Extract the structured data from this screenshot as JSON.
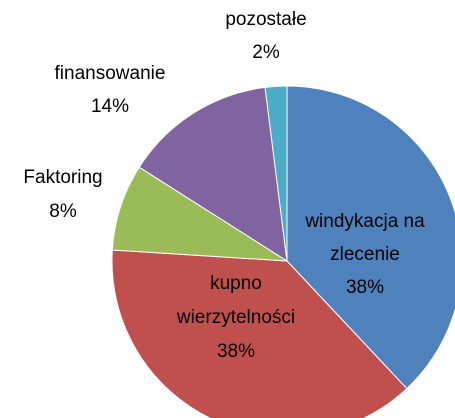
{
  "chart_data": {
    "type": "pie",
    "categories": [
      "windykacja na zlecenie",
      "kupno wierzytelności",
      "Faktoring",
      "finansowanie",
      "pozostałe"
    ],
    "values": [
      38,
      38,
      8,
      14,
      2
    ],
    "value_labels": [
      "38%",
      "38%",
      "8%",
      "14%",
      "2%"
    ],
    "colors": [
      "#4f81bd",
      "#c0504d",
      "#9bbb59",
      "#8064a2",
      "#4bacc6"
    ]
  }
}
